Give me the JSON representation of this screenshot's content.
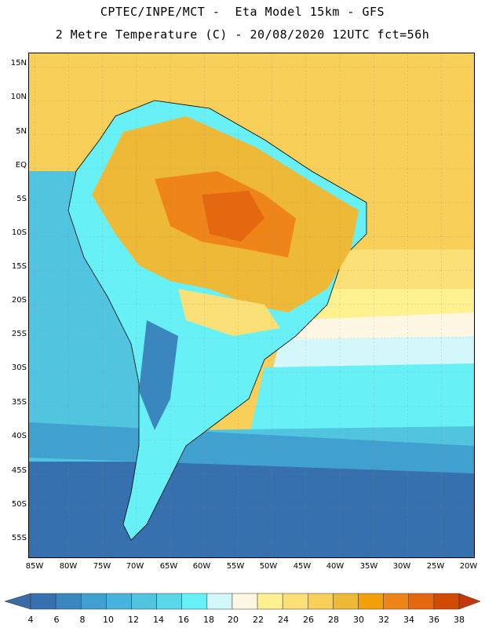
{
  "header": {
    "line1": "CPTEC/INPE/MCT -  Eta Model 15km - GFS",
    "line2": "2 Metre Temperature (C) - 20/08/2020 12UTC fct=56h"
  },
  "map": {
    "region": "South America",
    "variable": "2 Metre Temperature",
    "units": "C",
    "lat_labels": [
      "15N",
      "10N",
      "5N",
      "EQ",
      "5S",
      "10S",
      "15S",
      "20S",
      "25S",
      "30S",
      "35S",
      "40S",
      "45S",
      "50S",
      "55S"
    ],
    "lon_labels": [
      "85W",
      "80W",
      "75W",
      "70W",
      "65W",
      "60W",
      "55W",
      "50W",
      "45W",
      "40W",
      "35W",
      "30W",
      "25W",
      "20W"
    ]
  },
  "colorbar": {
    "labels": [
      "4",
      "6",
      "8",
      "10",
      "12",
      "14",
      "16",
      "18",
      "20",
      "22",
      "24",
      "26",
      "28",
      "30",
      "32",
      "34",
      "36",
      "38"
    ],
    "colors": [
      "#3670ae",
      "#3a86bf",
      "#40a0cf",
      "#48b3dc",
      "#51c4e0",
      "#5ad8ea",
      "#67f1f6",
      "#d3f7fb",
      "#fdf7e3",
      "#fdf190",
      "#fae076",
      "#f7cf59",
      "#efb938",
      "#f29f0c",
      "#ef8418",
      "#e56811",
      "#d24b04",
      "#c1360a"
    ]
  }
}
